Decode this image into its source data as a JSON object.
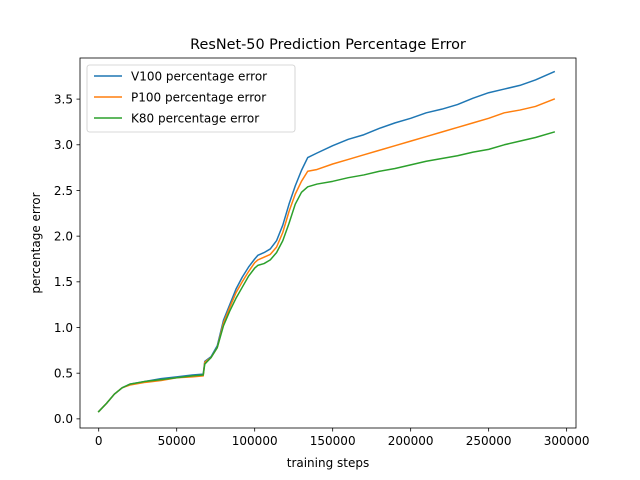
{
  "chart_data": {
    "type": "line",
    "title": "ResNet-50 Prediction Percentage Error",
    "xlabel": "training steps",
    "ylabel": "percentage error",
    "xlim": [
      -12000,
      306000
    ],
    "ylim": [
      -0.1,
      3.95
    ],
    "xticks": [
      0,
      50000,
      100000,
      150000,
      200000,
      250000,
      300000
    ],
    "xtick_labels": [
      "0",
      "50000",
      "100000",
      "150000",
      "200000",
      "250000",
      "300000"
    ],
    "yticks": [
      0.0,
      0.5,
      1.0,
      1.5,
      2.0,
      2.5,
      3.0,
      3.5
    ],
    "ytick_labels": [
      "0.0",
      "0.5",
      "1.0",
      "1.5",
      "2.0",
      "2.5",
      "3.0",
      "3.5"
    ],
    "grid": false,
    "legend_position": "upper-left",
    "series": [
      {
        "name": "V100 percentage error",
        "color": "#1f77b4",
        "points": [
          [
            0,
            0.08
          ],
          [
            5000,
            0.17
          ],
          [
            10000,
            0.27
          ],
          [
            15000,
            0.34
          ],
          [
            20000,
            0.38
          ],
          [
            30000,
            0.41
          ],
          [
            40000,
            0.44
          ],
          [
            50000,
            0.46
          ],
          [
            60000,
            0.48
          ],
          [
            67000,
            0.49
          ],
          [
            68000,
            0.63
          ],
          [
            72000,
            0.68
          ],
          [
            76000,
            0.8
          ],
          [
            80000,
            1.08
          ],
          [
            84000,
            1.25
          ],
          [
            88000,
            1.42
          ],
          [
            92000,
            1.55
          ],
          [
            96000,
            1.66
          ],
          [
            100000,
            1.75
          ],
          [
            102000,
            1.79
          ],
          [
            106000,
            1.82
          ],
          [
            110000,
            1.86
          ],
          [
            114000,
            1.95
          ],
          [
            118000,
            2.12
          ],
          [
            122000,
            2.35
          ],
          [
            126000,
            2.55
          ],
          [
            130000,
            2.72
          ],
          [
            134000,
            2.86
          ],
          [
            140000,
            2.91
          ],
          [
            150000,
            2.99
          ],
          [
            160000,
            3.06
          ],
          [
            170000,
            3.11
          ],
          [
            180000,
            3.18
          ],
          [
            190000,
            3.24
          ],
          [
            200000,
            3.29
          ],
          [
            210000,
            3.35
          ],
          [
            220000,
            3.39
          ],
          [
            230000,
            3.44
          ],
          [
            240000,
            3.51
          ],
          [
            250000,
            3.57
          ],
          [
            260000,
            3.61
          ],
          [
            270000,
            3.65
          ],
          [
            280000,
            3.71
          ],
          [
            292000,
            3.8
          ]
        ]
      },
      {
        "name": "P100 percentage error",
        "color": "#ff7f0e",
        "points": [
          [
            0,
            0.08
          ],
          [
            5000,
            0.17
          ],
          [
            10000,
            0.27
          ],
          [
            15000,
            0.34
          ],
          [
            20000,
            0.37
          ],
          [
            30000,
            0.4
          ],
          [
            40000,
            0.42
          ],
          [
            50000,
            0.45
          ],
          [
            60000,
            0.46
          ],
          [
            67000,
            0.47
          ],
          [
            68000,
            0.62
          ],
          [
            72000,
            0.67
          ],
          [
            76000,
            0.78
          ],
          [
            80000,
            1.05
          ],
          [
            84000,
            1.22
          ],
          [
            88000,
            1.38
          ],
          [
            92000,
            1.5
          ],
          [
            96000,
            1.61
          ],
          [
            100000,
            1.71
          ],
          [
            102000,
            1.74
          ],
          [
            106000,
            1.77
          ],
          [
            110000,
            1.8
          ],
          [
            114000,
            1.88
          ],
          [
            118000,
            2.04
          ],
          [
            122000,
            2.27
          ],
          [
            126000,
            2.46
          ],
          [
            130000,
            2.6
          ],
          [
            134000,
            2.71
          ],
          [
            140000,
            2.73
          ],
          [
            150000,
            2.79
          ],
          [
            160000,
            2.84
          ],
          [
            170000,
            2.89
          ],
          [
            180000,
            2.94
          ],
          [
            190000,
            2.99
          ],
          [
            200000,
            3.04
          ],
          [
            210000,
            3.09
          ],
          [
            220000,
            3.14
          ],
          [
            230000,
            3.19
          ],
          [
            240000,
            3.24
          ],
          [
            250000,
            3.29
          ],
          [
            260000,
            3.35
          ],
          [
            270000,
            3.38
          ],
          [
            280000,
            3.42
          ],
          [
            292000,
            3.5
          ]
        ]
      },
      {
        "name": "K80 percentage error",
        "color": "#2ca02c",
        "points": [
          [
            0,
            0.08
          ],
          [
            5000,
            0.17
          ],
          [
            10000,
            0.27
          ],
          [
            15000,
            0.34
          ],
          [
            20000,
            0.38
          ],
          [
            30000,
            0.41
          ],
          [
            40000,
            0.43
          ],
          [
            50000,
            0.45
          ],
          [
            60000,
            0.47
          ],
          [
            67000,
            0.48
          ],
          [
            68000,
            0.6
          ],
          [
            72000,
            0.67
          ],
          [
            76000,
            0.78
          ],
          [
            80000,
            1.02
          ],
          [
            84000,
            1.18
          ],
          [
            88000,
            1.32
          ],
          [
            92000,
            1.44
          ],
          [
            96000,
            1.56
          ],
          [
            100000,
            1.65
          ],
          [
            102000,
            1.68
          ],
          [
            106000,
            1.7
          ],
          [
            110000,
            1.74
          ],
          [
            114000,
            1.82
          ],
          [
            118000,
            1.95
          ],
          [
            122000,
            2.14
          ],
          [
            126000,
            2.35
          ],
          [
            130000,
            2.48
          ],
          [
            134000,
            2.54
          ],
          [
            140000,
            2.57
          ],
          [
            150000,
            2.6
          ],
          [
            160000,
            2.64
          ],
          [
            170000,
            2.67
          ],
          [
            180000,
            2.71
          ],
          [
            190000,
            2.74
          ],
          [
            200000,
            2.78
          ],
          [
            210000,
            2.82
          ],
          [
            220000,
            2.85
          ],
          [
            230000,
            2.88
          ],
          [
            240000,
            2.92
          ],
          [
            250000,
            2.95
          ],
          [
            260000,
            3.0
          ],
          [
            270000,
            3.04
          ],
          [
            280000,
            3.08
          ],
          [
            292000,
            3.14
          ]
        ]
      }
    ]
  }
}
